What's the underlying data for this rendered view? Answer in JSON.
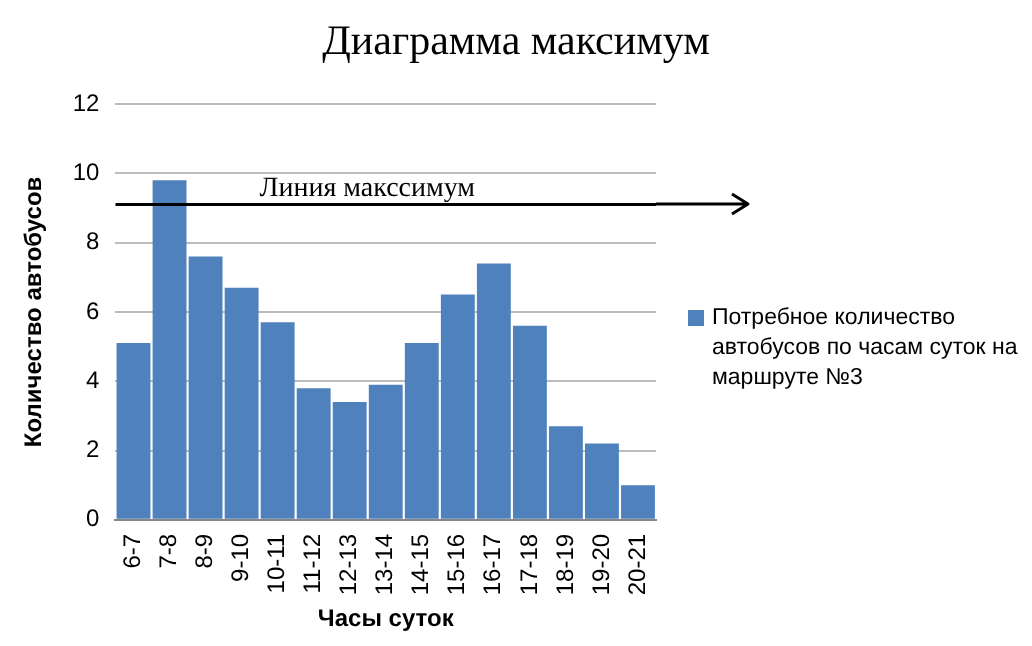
{
  "chart_data": {
    "type": "bar",
    "title": "Диаграмма максимум",
    "xlabel": "Часы суток",
    "ylabel": "Количество автобусов",
    "categories": [
      "6-7",
      "7-8",
      "8-9",
      "9-10",
      "10-11",
      "11-12",
      "12-13",
      "13-14",
      "14-15",
      "15-16",
      "16-17",
      "17-18",
      "18-19",
      "19-20",
      "20-21"
    ],
    "series": [
      {
        "name": "Потребное количество автобусов по часам суток на маршруте №3",
        "color": "#4f81bd",
        "values": [
          5.1,
          9.8,
          7.6,
          6.7,
          5.7,
          3.8,
          3.4,
          3.9,
          5.1,
          6.5,
          7.4,
          5.6,
          2.7,
          2.2,
          1.0
        ]
      }
    ],
    "ylim": [
      0,
      12
    ],
    "yticks": [
      0,
      2,
      4,
      6,
      8,
      10,
      12
    ],
    "grid": "y",
    "legend": "right",
    "ref_lines": [
      {
        "axis": "y",
        "value": 9.1,
        "label": "Линия макссимум",
        "color": "#000000",
        "line_style": "solid"
      }
    ]
  }
}
